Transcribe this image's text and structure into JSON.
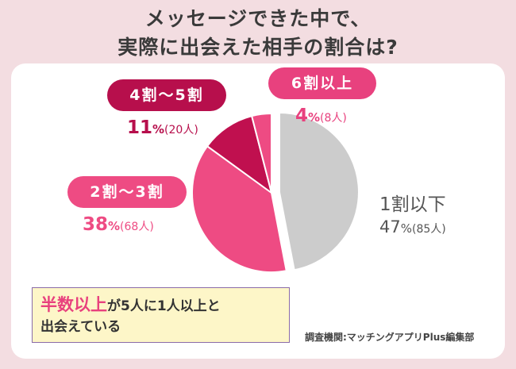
{
  "title_line1": "メッセージできた中で、",
  "title_line2": "実際に出会えた相手の割合は?",
  "chart_data": {
    "type": "pie",
    "slices": [
      {
        "label": "1割以下",
        "percent": 47,
        "pct_text": "47",
        "count_text": "(85人)",
        "color": "#cccccc"
      },
      {
        "label": "2割〜3割",
        "percent": 38,
        "pct_text": "38",
        "count_text": "(68人)",
        "color": "#ee4b83"
      },
      {
        "label": "4割〜5割",
        "percent": 11,
        "pct_text": "11",
        "count_text": "(20人)",
        "color": "#c0104f"
      },
      {
        "label": "6割以上",
        "percent": 4,
        "pct_text": "4",
        "count_text": "(8人)",
        "color": "#ee4b83"
      }
    ],
    "percent_unit": "%"
  },
  "note": {
    "highlight": "半数以上",
    "line1_rest": "が5人に1人以上と",
    "line2": "出会えている"
  },
  "source": "調査機関:マッチングアプリPlus編集部"
}
